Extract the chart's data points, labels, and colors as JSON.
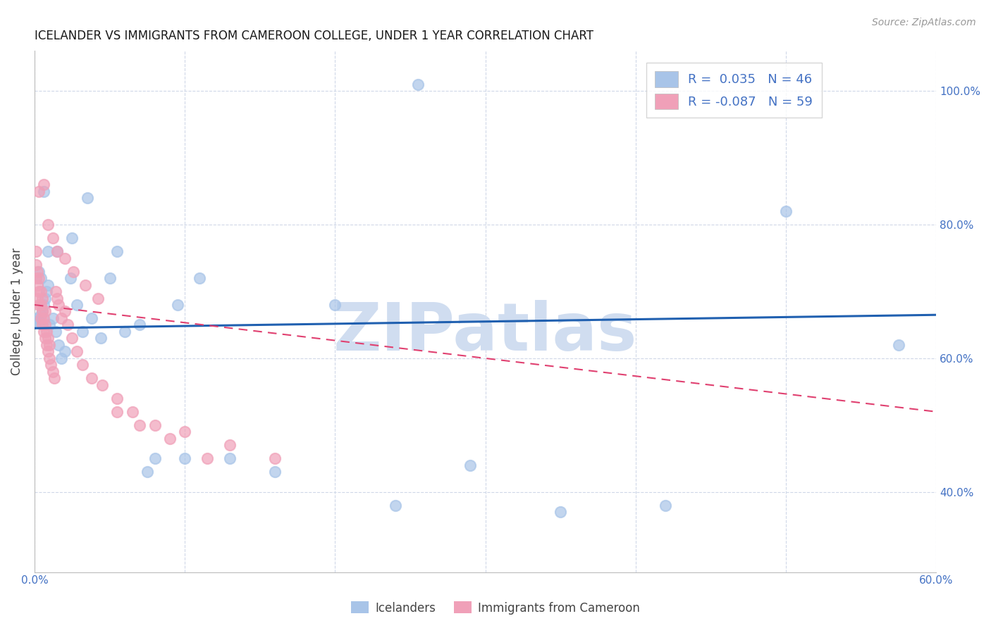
{
  "title": "ICELANDER VS IMMIGRANTS FROM CAMEROON COLLEGE, UNDER 1 YEAR CORRELATION CHART",
  "source": "Source: ZipAtlas.com",
  "ylabel": "College, Under 1 year",
  "xlim": [
    0.0,
    0.6
  ],
  "ylim": [
    0.28,
    1.06
  ],
  "blue_R": 0.035,
  "blue_N": 46,
  "pink_R": -0.087,
  "pink_N": 59,
  "blue_color": "#a8c4e8",
  "pink_color": "#f0a0b8",
  "blue_line_color": "#2060b0",
  "pink_line_color": "#e04070",
  "grid_color": "#d0d8e8",
  "axis_color": "#4472c4",
  "title_color": "#1a1a1a",
  "watermark": "ZIPatlas",
  "watermark_color": "#d0ddf0",
  "background_color": "#ffffff",
  "blue_scatter_x": [
    0.001,
    0.002,
    0.003,
    0.004,
    0.004,
    0.005,
    0.006,
    0.007,
    0.008,
    0.009,
    0.01,
    0.012,
    0.014,
    0.016,
    0.018,
    0.02,
    0.024,
    0.028,
    0.032,
    0.038,
    0.044,
    0.05,
    0.06,
    0.07,
    0.08,
    0.095,
    0.11,
    0.13,
    0.16,
    0.2,
    0.24,
    0.29,
    0.35,
    0.42,
    0.5,
    0.575,
    0.003,
    0.006,
    0.009,
    0.015,
    0.025,
    0.035,
    0.055,
    0.075,
    0.1,
    0.255
  ],
  "blue_scatter_y": [
    0.655,
    0.66,
    0.655,
    0.665,
    0.72,
    0.67,
    0.68,
    0.69,
    0.7,
    0.71,
    0.65,
    0.66,
    0.64,
    0.62,
    0.6,
    0.61,
    0.72,
    0.68,
    0.64,
    0.66,
    0.63,
    0.72,
    0.64,
    0.65,
    0.45,
    0.68,
    0.72,
    0.45,
    0.43,
    0.68,
    0.38,
    0.44,
    0.37,
    0.38,
    0.82,
    0.62,
    0.73,
    0.85,
    0.76,
    0.76,
    0.78,
    0.84,
    0.76,
    0.43,
    0.45,
    1.01
  ],
  "pink_scatter_x": [
    0.001,
    0.001,
    0.001,
    0.002,
    0.002,
    0.002,
    0.003,
    0.003,
    0.003,
    0.004,
    0.004,
    0.004,
    0.005,
    0.005,
    0.005,
    0.006,
    0.006,
    0.007,
    0.007,
    0.007,
    0.008,
    0.008,
    0.009,
    0.009,
    0.01,
    0.01,
    0.011,
    0.012,
    0.013,
    0.014,
    0.015,
    0.016,
    0.018,
    0.02,
    0.022,
    0.025,
    0.028,
    0.032,
    0.038,
    0.045,
    0.055,
    0.065,
    0.08,
    0.1,
    0.13,
    0.16,
    0.003,
    0.006,
    0.009,
    0.012,
    0.015,
    0.02,
    0.026,
    0.034,
    0.042,
    0.055,
    0.07,
    0.09,
    0.115
  ],
  "pink_scatter_y": [
    0.72,
    0.74,
    0.76,
    0.69,
    0.71,
    0.73,
    0.68,
    0.7,
    0.72,
    0.66,
    0.68,
    0.7,
    0.65,
    0.67,
    0.69,
    0.64,
    0.66,
    0.63,
    0.65,
    0.67,
    0.62,
    0.64,
    0.61,
    0.63,
    0.6,
    0.62,
    0.59,
    0.58,
    0.57,
    0.7,
    0.69,
    0.68,
    0.66,
    0.67,
    0.65,
    0.63,
    0.61,
    0.59,
    0.57,
    0.56,
    0.54,
    0.52,
    0.5,
    0.49,
    0.47,
    0.45,
    0.85,
    0.86,
    0.8,
    0.78,
    0.76,
    0.75,
    0.73,
    0.71,
    0.69,
    0.52,
    0.5,
    0.48,
    0.45
  ],
  "blue_trend_x0": 0.0,
  "blue_trend_y0": 0.645,
  "blue_trend_x1": 0.6,
  "blue_trend_y1": 0.665,
  "pink_trend_x0": 0.0,
  "pink_trend_y0": 0.68,
  "pink_trend_x1": 0.6,
  "pink_trend_y1": 0.52
}
